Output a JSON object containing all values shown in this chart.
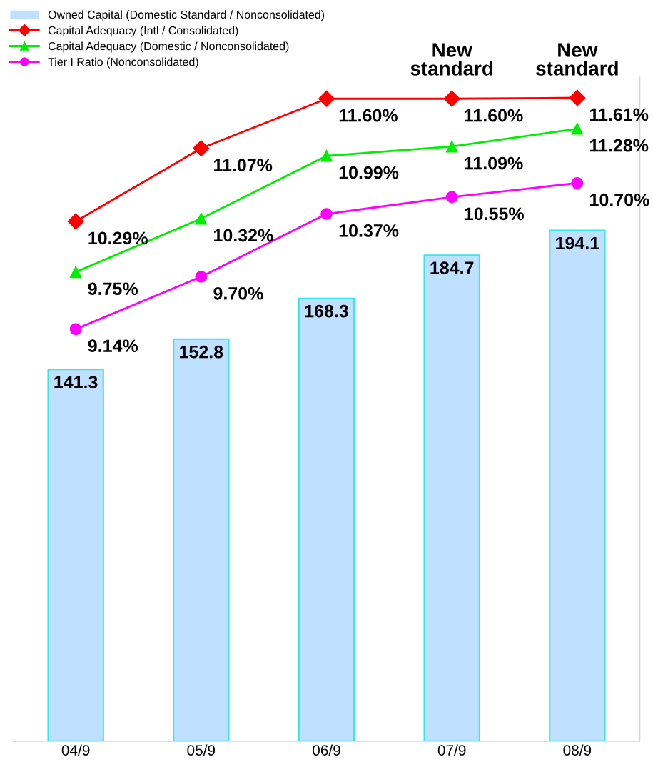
{
  "chart_data": {
    "type": "bar",
    "categories": [
      "04/9",
      "05/9",
      "06/9",
      "07/9",
      "08/9"
    ],
    "series": [
      {
        "name": "Owned Capital (Domestic Standard / Nonconsolidated)",
        "axis": "y2",
        "color": "#bfe0ff",
        "values": [
          141.3,
          152.8,
          168.3,
          184.7,
          194.1
        ]
      },
      {
        "name": "Capital Adequacy (Intl / Consolidated)",
        "type": "line",
        "color": "#ff0000",
        "marker": "diamond",
        "values": [
          10.29,
          11.07,
          11.6,
          11.6,
          11.61
        ],
        "value_labels": [
          "10.29%",
          "11.07%",
          "11.60%",
          "11.60%",
          "11.61%"
        ]
      },
      {
        "name": "Capital Adequacy (Domestic / Nonconsolidated)",
        "type": "line",
        "color": "#00ee00",
        "marker": "triangle",
        "values": [
          9.75,
          10.32,
          10.99,
          11.09,
          11.28
        ],
        "value_labels": [
          "9.75%",
          "10.32%",
          "10.99%",
          "11.09%",
          "11.28%"
        ]
      },
      {
        "name": "Tier I Ratio (Nonconsolidated)",
        "type": "line",
        "color": "#ff00ff",
        "marker": "circle",
        "values": [
          9.14,
          9.7,
          10.37,
          10.55,
          10.7
        ],
        "value_labels": [
          "9.14%",
          "9.70%",
          "10.37%",
          "10.55%",
          "10.70%"
        ]
      }
    ],
    "ylim": [
      4.74,
      11.83
    ],
    "tick_labels": false,
    "data_labels": true,
    "grid": false,
    "legend": "top left",
    "annotations": [
      "New\nstandard",
      "New\nstandard"
    ]
  }
}
